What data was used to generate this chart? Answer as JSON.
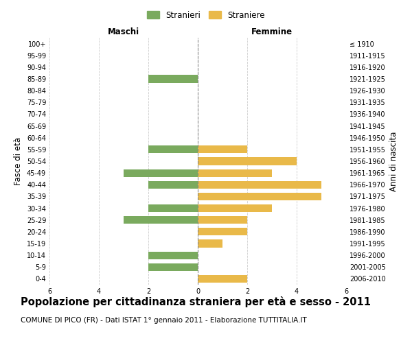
{
  "age_groups": [
    "100+",
    "95-99",
    "90-94",
    "85-89",
    "80-84",
    "75-79",
    "70-74",
    "65-69",
    "60-64",
    "55-59",
    "50-54",
    "45-49",
    "40-44",
    "35-39",
    "30-34",
    "25-29",
    "20-24",
    "15-19",
    "10-14",
    "5-9",
    "0-4"
  ],
  "birth_years": [
    "≤ 1910",
    "1911-1915",
    "1916-1920",
    "1921-1925",
    "1926-1930",
    "1931-1935",
    "1936-1940",
    "1941-1945",
    "1946-1950",
    "1951-1955",
    "1956-1960",
    "1961-1965",
    "1966-1970",
    "1971-1975",
    "1976-1980",
    "1981-1985",
    "1986-1990",
    "1991-1995",
    "1996-2000",
    "2001-2005",
    "2006-2010"
  ],
  "maschi": [
    0,
    0,
    0,
    2,
    0,
    0,
    0,
    0,
    0,
    2,
    0,
    3,
    2,
    0,
    2,
    3,
    0,
    0,
    2,
    2,
    0
  ],
  "femmine": [
    0,
    0,
    0,
    0,
    0,
    0,
    0,
    0,
    0,
    2,
    4,
    3,
    5,
    5,
    3,
    2,
    2,
    1,
    0,
    0,
    2
  ],
  "maschi_color": "#7aaa5e",
  "femmine_color": "#e9b949",
  "background_color": "#ffffff",
  "grid_color": "#cccccc",
  "title": "Popolazione per cittadinanza straniera per età e sesso - 2011",
  "subtitle": "COMUNE DI PICO (FR) - Dati ISTAT 1° gennaio 2011 - Elaborazione TUTTITALIA.IT",
  "ylabel_left": "Fasce di età",
  "ylabel_right": "Anni di nascita",
  "xlabel_maschi": "Maschi",
  "xlabel_femmine": "Femmine",
  "legend_maschi": "Stranieri",
  "legend_femmine": "Straniere",
  "xlim": 6,
  "title_fontsize": 10.5,
  "subtitle_fontsize": 7.5,
  "tick_fontsize": 7,
  "label_fontsize": 8.5
}
